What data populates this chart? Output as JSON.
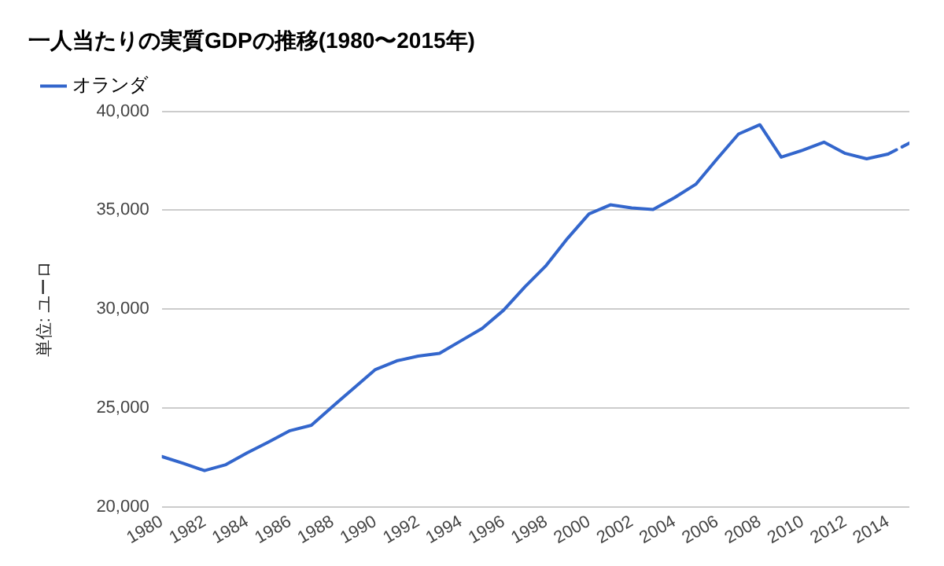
{
  "chart_data": {
    "type": "line",
    "title": "一人当たりの実質GDPの推移(1980〜2015年)",
    "ylabel": "単位: ユーロ",
    "series": [
      {
        "name": "オランダ",
        "color": "#3366cc",
        "line_style": "solid",
        "x": [
          1980,
          1981,
          1982,
          1983,
          1984,
          1985,
          1986,
          1987,
          1988,
          1989,
          1990,
          1991,
          1992,
          1993,
          1994,
          1995,
          1996,
          1997,
          1998,
          1999,
          2000,
          2001,
          2002,
          2003,
          2004,
          2005,
          2006,
          2007,
          2008,
          2009,
          2010,
          2011,
          2012,
          2013,
          2014
        ],
        "values": [
          22540,
          22200,
          21830,
          22130,
          22730,
          23280,
          23850,
          24120,
          25080,
          26010,
          26940,
          27380,
          27620,
          27760,
          28390,
          29020,
          29940,
          31120,
          32210,
          33580,
          34810,
          35270,
          35110,
          35030,
          35630,
          36310,
          37600,
          38850,
          39320,
          37680,
          38030,
          38440,
          37870,
          37600,
          37840
        ]
      },
      {
        "color": "#3366cc",
        "line_style": "dashed",
        "x": [
          2014,
          2015
        ],
        "values": [
          37840,
          38390
        ]
      }
    ],
    "xlim": [
      1980,
      2015
    ],
    "xticks": [
      1980,
      1982,
      1984,
      1986,
      1988,
      1990,
      1992,
      1994,
      1996,
      1998,
      2000,
      2002,
      2004,
      2006,
      2008,
      2010,
      2012,
      2014
    ],
    "ylim": [
      20000,
      40000
    ],
    "yticks": [
      {
        "value": 20000,
        "label": "20,000"
      },
      {
        "value": 25000,
        "label": "25,000"
      },
      {
        "value": 30000,
        "label": "30,000"
      },
      {
        "value": 35000,
        "label": "35,000"
      },
      {
        "value": 40000,
        "label": "40,000"
      }
    ],
    "grid": "y",
    "legend": "top left",
    "marker": "none"
  }
}
